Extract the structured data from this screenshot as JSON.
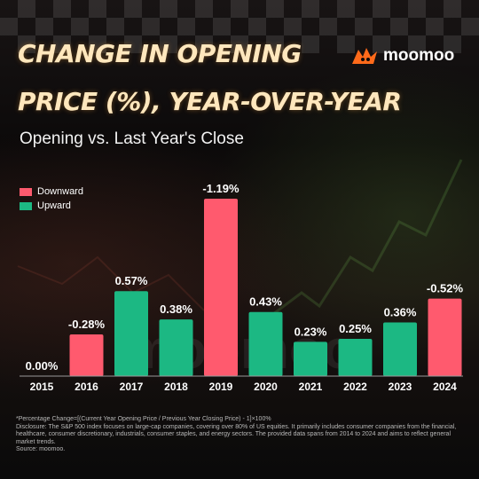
{
  "header": {
    "title_line1": "CHANGE IN OPENING",
    "title_line2": "PRICE (%), YEAR-OVER-YEAR",
    "subtitle": "Opening vs. Last Year's Close",
    "logo_text": "moomoo",
    "watermark": "moomoo"
  },
  "colors": {
    "downward": "#ff5a6e",
    "upward": "#1cb883",
    "title": "#ffe7bd",
    "logo": "#ff6a1a"
  },
  "chart_data": {
    "type": "bar",
    "categories": [
      "2015",
      "2016",
      "2017",
      "2018",
      "2019",
      "2020",
      "2021",
      "2022",
      "2023",
      "2024"
    ],
    "series": [
      {
        "name": "Change in Opening Price (%)",
        "values": [
          0.0,
          -0.28,
          0.57,
          0.38,
          -1.19,
          0.43,
          0.23,
          0.25,
          0.36,
          -0.52
        ],
        "labels": [
          "0.00%",
          "-0.28%",
          "0.57%",
          "0.38%",
          "-1.19%",
          "0.43%",
          "0.23%",
          "0.25%",
          "0.36%",
          "-0.52%"
        ],
        "direction": [
          "upward",
          "downward",
          "upward",
          "upward",
          "downward",
          "upward",
          "upward",
          "upward",
          "upward",
          "downward"
        ]
      }
    ],
    "legend": [
      {
        "key": "downward",
        "label": "Downward"
      },
      {
        "key": "upward",
        "label": "Upward"
      }
    ],
    "legend_position": "top-left",
    "bar_height_basis": "absolute value",
    "grid": false
  },
  "footer": {
    "lines": [
      "*Percentage Change=[(Current Year Opening Price / Previous Year Closing Price) - 1]×100%",
      "Disclosure: The S&P 500 index focuses on large-cap companies, covering over 80% of US equities. It primarily includes consumer companies from the financial, healthcare, consumer discretionary, industrials, consumer staples, and energy sectors. The provided data spans from 2014 to 2024 and aims to reflect general market trends.",
      "Source: moomoo."
    ]
  }
}
